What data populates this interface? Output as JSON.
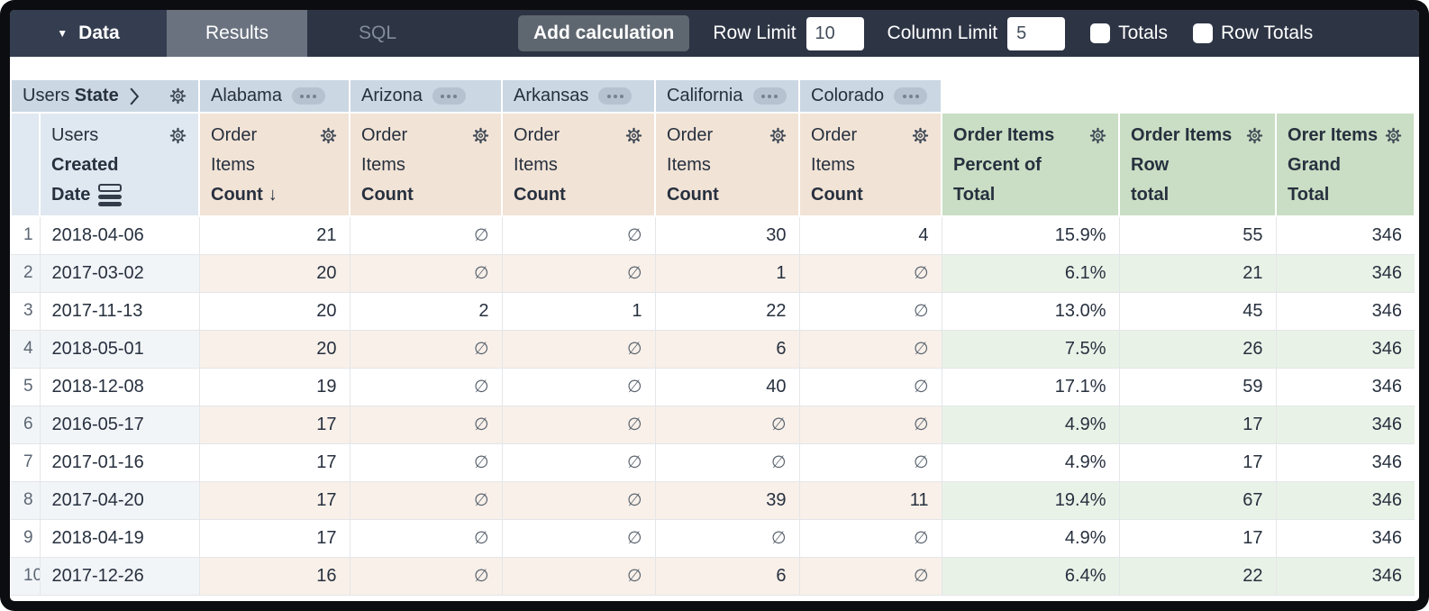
{
  "toolbar": {
    "data_label": "Data",
    "tabs": [
      {
        "label": "Results",
        "active": true
      },
      {
        "label": "SQL",
        "active": false
      }
    ],
    "add_calculation": "Add calculation",
    "row_limit": {
      "label": "Row Limit",
      "value": "10"
    },
    "column_limit": {
      "label": "Column Limit",
      "value": "5"
    },
    "totals": {
      "label": "Totals",
      "checked": false
    },
    "row_totals": {
      "label": "Row Totals",
      "checked": false
    }
  },
  "pivot": {
    "view": "Users",
    "field": "State",
    "values": [
      "Alabama",
      "Arizona",
      "Arkansas",
      "California",
      "Colorado"
    ]
  },
  "row_dimension": {
    "view": "Users",
    "field_line1": "Created",
    "field_line2": "Date"
  },
  "pivoted_measure": {
    "view_line1": "Order",
    "view_line2": "Items",
    "field": "Count",
    "sort_arrow": "↓"
  },
  "calculations": [
    {
      "lines": [
        "Order Items",
        "Percent of",
        "Total"
      ]
    },
    {
      "lines": [
        "Order Items",
        "Row",
        "total"
      ]
    },
    {
      "lines": [
        "Orer Items",
        "Grand",
        "Total"
      ]
    }
  ],
  "table": {
    "null_symbol": "∅",
    "rows": [
      {
        "num": "1",
        "date": "2018-04-06",
        "states": [
          "21",
          null,
          null,
          "30",
          "4"
        ],
        "percent": "15.9%",
        "row_total": "55",
        "grand_total": "346"
      },
      {
        "num": "2",
        "date": "2017-03-02",
        "states": [
          "20",
          null,
          null,
          "1",
          null
        ],
        "percent": "6.1%",
        "row_total": "21",
        "grand_total": "346"
      },
      {
        "num": "3",
        "date": "2017-11-13",
        "states": [
          "20",
          "2",
          "1",
          "22",
          null
        ],
        "percent": "13.0%",
        "row_total": "45",
        "grand_total": "346"
      },
      {
        "num": "4",
        "date": "2018-05-01",
        "states": [
          "20",
          null,
          null,
          "6",
          null
        ],
        "percent": "7.5%",
        "row_total": "26",
        "grand_total": "346"
      },
      {
        "num": "5",
        "date": "2018-12-08",
        "states": [
          "19",
          null,
          null,
          "40",
          null
        ],
        "percent": "17.1%",
        "row_total": "59",
        "grand_total": "346"
      },
      {
        "num": "6",
        "date": "2016-05-17",
        "states": [
          "17",
          null,
          null,
          null,
          null
        ],
        "percent": "4.9%",
        "row_total": "17",
        "grand_total": "346"
      },
      {
        "num": "7",
        "date": "2017-01-16",
        "states": [
          "17",
          null,
          null,
          null,
          null
        ],
        "percent": "4.9%",
        "row_total": "17",
        "grand_total": "346"
      },
      {
        "num": "8",
        "date": "2017-04-20",
        "states": [
          "17",
          null,
          null,
          "39",
          "11"
        ],
        "percent": "19.4%",
        "row_total": "67",
        "grand_total": "346"
      },
      {
        "num": "9",
        "date": "2018-04-19",
        "states": [
          "17",
          null,
          null,
          null,
          null
        ],
        "percent": "4.9%",
        "row_total": "17",
        "grand_total": "346"
      },
      {
        "num": "10",
        "date": "2017-12-26",
        "states": [
          "16",
          null,
          null,
          "6",
          null
        ],
        "percent": "6.4%",
        "row_total": "22",
        "grand_total": "346"
      }
    ]
  },
  "colors": {
    "topbar_bg": "#2d3444",
    "active_tab_bg": "#6a7280",
    "pivot_header_bg": "#cbd7e3",
    "dimension_header_bg": "#dfe8f0",
    "measure_header_bg": "#f1e3d6",
    "calculation_header_bg": "#c9dec4",
    "even_row_blue": "#f2f5f8",
    "even_row_beige": "#f8f0e9",
    "even_row_green": "#e9f2e7"
  }
}
